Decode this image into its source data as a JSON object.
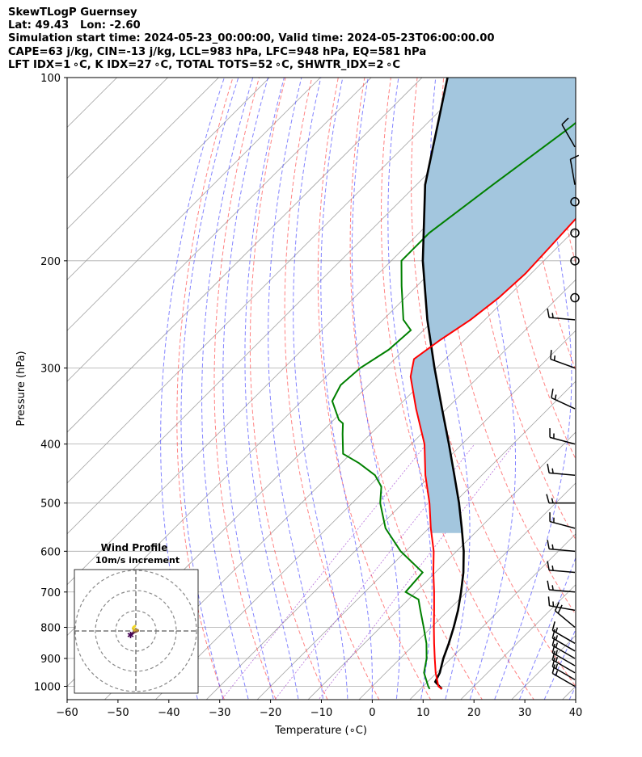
{
  "header": {
    "line1": "SkewTLogP Guernsey",
    "line2": "Lat: 49.43   Lon: -2.60",
    "line3": "Simulation start time: 2024-05-23_00:00:00, Valid time: 2024-05-23T06:00:00.00",
    "line4": "CAPE=63 j/kg, CIN=-13 j/kg, LCL=983 hPa, LFC=948 hPa, EQ=581 hPa",
    "line5": "LFT IDX=1 ∘C, K IDX=27 ∘C, TOTAL TOTS=52 ∘C, SHWTR_IDX=2 ∘C"
  },
  "chart_data": {
    "type": "line",
    "xlabel": "Temperature (∘C)",
    "ylabel": "Pressure (hPa)",
    "xlim": [
      -60,
      40
    ],
    "ylim": [
      1050,
      100
    ],
    "yscale": "log",
    "skew": true,
    "x_ticks": [
      "−60",
      "−50",
      "−40",
      "−30",
      "−20",
      "−10",
      "0",
      "10",
      "20",
      "30",
      "40"
    ],
    "y_ticks": [
      "100",
      "200",
      "300",
      "400",
      "500",
      "600",
      "700",
      "800",
      "900",
      "1000"
    ],
    "colors": {
      "temperature": "#ff0000",
      "dewpoint": "#008000",
      "parcel": "#000000",
      "cape_fill": "#a3c6de",
      "dry_adiabats": "#ff4040",
      "moist_adiabats": "#4040ff",
      "isotherms": "#999999"
    },
    "series": [
      {
        "key": "temperature",
        "pressure": [
          1010,
          1000,
          950,
          900,
          850,
          800,
          750,
          700,
          650,
          600,
          550,
          500,
          450,
          400,
          350,
          310,
          290,
          270,
          250,
          230,
          210,
          190,
          170,
          150,
          130,
          110,
          100
        ],
        "values": [
          14.2,
          13.0,
          9.8,
          6.8,
          3.7,
          0.5,
          -2.8,
          -6.4,
          -10.4,
          -14.5,
          -19.6,
          -24.8,
          -31.1,
          -37.4,
          -46.0,
          -53.4,
          -56.2,
          -54.8,
          -52.8,
          -51.6,
          -51.1,
          -51.5,
          -52.0,
          -53.2,
          -54.6,
          -57.0,
          -58.5
        ]
      },
      {
        "key": "dewpoint",
        "pressure": [
          1010,
          1000,
          950,
          900,
          850,
          800,
          750,
          720,
          700,
          650,
          600,
          550,
          500,
          470,
          450,
          430,
          415,
          385,
          370,
          365,
          340,
          320,
          300,
          280,
          260,
          250,
          220,
          200,
          180,
          150,
          120,
          100
        ],
        "values": [
          11.8,
          11.0,
          7.5,
          5.2,
          2.2,
          -1.5,
          -5.5,
          -8.0,
          -12.0,
          -12.5,
          -21.0,
          -28.5,
          -34.5,
          -37.5,
          -41.0,
          -46.5,
          -51.5,
          -55.5,
          -57.5,
          -59.0,
          -64.0,
          -65.5,
          -65.0,
          -63.0,
          -62.5,
          -66.0,
          -73.0,
          -78.0,
          -78.0,
          -75.0,
          -71.0,
          -69.0
        ]
      },
      {
        "key": "parcel",
        "pressure": [
          1010,
          1000,
          983,
          950,
          900,
          850,
          800,
          750,
          700,
          650,
          600,
          550,
          500,
          450,
          400,
          350,
          300,
          250,
          200,
          150,
          100
        ],
        "values": [
          14.2,
          13.2,
          11.5,
          10.6,
          8.5,
          6.6,
          4.4,
          1.9,
          -1.1,
          -4.5,
          -8.6,
          -13.5,
          -19.0,
          -25.4,
          -32.6,
          -40.9,
          -50.4,
          -61.3,
          -73.8,
          -88.3,
          -105.0
        ]
      }
    ],
    "wind_barbs": {
      "pressure": [
        1000,
        975,
        950,
        925,
        900,
        875,
        850,
        800,
        750,
        700,
        650,
        600,
        550,
        500,
        450,
        400,
        350,
        300,
        250,
        230,
        200,
        180,
        160,
        150,
        130
      ],
      "speed_kt": [
        15,
        15,
        15,
        15,
        15,
        15,
        15,
        20,
        15,
        15,
        15,
        15,
        15,
        15,
        15,
        15,
        15,
        15,
        15,
        0,
        0,
        0,
        0,
        10,
        10
      ],
      "direction_deg": [
        300,
        300,
        300,
        300,
        300,
        300,
        300,
        310,
        280,
        275,
        275,
        275,
        285,
        270,
        275,
        285,
        295,
        290,
        275,
        0,
        0,
        0,
        0,
        350,
        330
      ]
    },
    "hodograph": {
      "title_line1": "Wind Profile",
      "title_line2": "10m/s increment",
      "u": [
        -2.6,
        -2.3,
        -1.6,
        -1.0,
        -0.6,
        0.0,
        0.4,
        1.0,
        0.8,
        0.2,
        -0.3,
        -0.8,
        -1.1,
        -1.4,
        -1.1,
        -0.5
      ],
      "v": [
        -1.9,
        -1.7,
        -1.2,
        -0.7,
        -0.5,
        -0.3,
        -0.1,
        0.2,
        0.4,
        0.5,
        0.6,
        0.3,
        0.9,
        1.3,
        1.9,
        2.4
      ],
      "ring_count": 3
    }
  }
}
